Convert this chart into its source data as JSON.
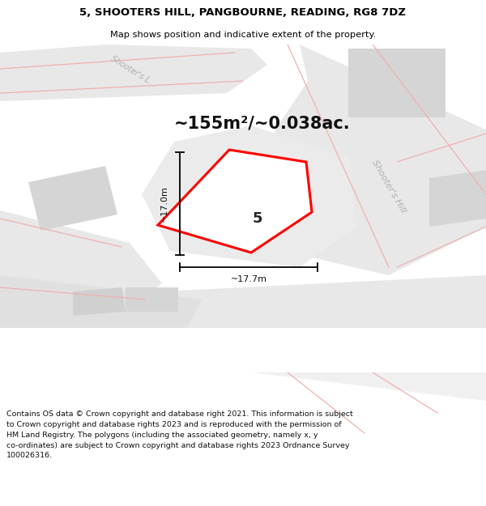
{
  "title_line1": "5, SHOOTERS HILL, PANGBOURNE, READING, RG8 7DZ",
  "title_line2": "Map shows position and indicative extent of the property.",
  "area_text": "~155m²/~0.038ac.",
  "footer_text": "Contains OS data © Crown copyright and database right 2021. This information is subject\nto Crown copyright and database rights 2023 and is reproduced with the permission of\nHM Land Registry. The polygons (including the associated geometry, namely x, y\nco-ordinates) are subject to Crown copyright and database rights 2023 Ordnance Survey\n100026316.",
  "dim_17m_label": "~17.0m",
  "dim_177m_label": "~17.7m",
  "property_label": "5",
  "road_grey": "#e8e8e8",
  "road_grey2": "#dedede",
  "block_grey": "#d0d0d0",
  "road_red": "#f0b0b0",
  "property_edge": "#ff0000",
  "bg_white": "#ffffff",
  "bg_light": "#f7f7f7"
}
